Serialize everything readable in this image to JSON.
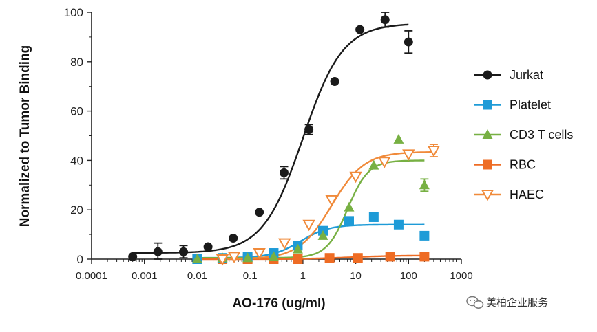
{
  "chart_data": {
    "type": "scatter",
    "title": "",
    "xlabel": "AO-176 (ug/ml)",
    "ylabel": "Normalized to Tumor Binding",
    "x_scale": "log",
    "xlim": [
      0.0001,
      1000
    ],
    "ylim": [
      0,
      100
    ],
    "x_ticks": [
      "0.0001",
      "0.001",
      "0.01",
      "0.1",
      "1",
      "10",
      "100",
      "1000"
    ],
    "y_ticks": [
      "0",
      "20",
      "40",
      "60",
      "80",
      "100"
    ],
    "legend_position": "right",
    "grid": false,
    "series": [
      {
        "name": "Jurkat",
        "color": "#1a1a1a",
        "marker": "circle",
        "x": [
          0.0006,
          0.0018,
          0.0055,
          0.016,
          0.048,
          0.15,
          0.44,
          1.3,
          4.0,
          12,
          36,
          100
        ],
        "y": [
          1,
          3,
          3,
          5,
          8.5,
          19,
          35,
          52.5,
          72,
          93,
          97,
          88
        ],
        "error": [
          0,
          3.5,
          2.5,
          0,
          0,
          0,
          2.5,
          2,
          0,
          0,
          3,
          4.5
        ],
        "fit": {
          "bottom": 2.5,
          "top": 95.5,
          "ec50": 1.0,
          "hill": 1.15,
          "x_range": [
            0.0006,
            100
          ]
        }
      },
      {
        "name": "Platelet",
        "color": "#1e9bd7",
        "marker": "square",
        "x": [
          0.01,
          0.03,
          0.09,
          0.28,
          0.8,
          2.4,
          7.5,
          22,
          65,
          200
        ],
        "y": [
          0,
          0.5,
          1,
          2.5,
          5.5,
          11.5,
          15.5,
          17,
          14,
          9.5
        ],
        "error": [],
        "fit": {
          "bottom": 0.5,
          "top": 14,
          "ec50": 0.9,
          "hill": 1.6,
          "x_range": [
            0.01,
            200
          ]
        }
      },
      {
        "name": "CD3 T cells",
        "color": "#77b043",
        "marker": "triangle-up",
        "x": [
          0.01,
          0.03,
          0.09,
          0.28,
          0.8,
          2.4,
          7.5,
          22,
          65,
          200
        ],
        "y": [
          0,
          0.5,
          0.5,
          1,
          4,
          9.5,
          21,
          38,
          48.5,
          30
        ],
        "error": [
          0,
          0,
          0,
          0,
          0,
          0,
          0,
          0,
          0,
          2.5
        ],
        "fit": {
          "bottom": 0.5,
          "top": 40,
          "ec50": 7.0,
          "hill": 2.2,
          "x_range": [
            0.01,
            200
          ]
        }
      },
      {
        "name": "RBC",
        "color": "#ee6c24",
        "marker": "square",
        "x": [
          0.01,
          0.03,
          0.09,
          0.28,
          0.8,
          3.2,
          11,
          45,
          200
        ],
        "y": [
          0,
          0,
          0,
          0,
          0,
          0.5,
          0.5,
          1,
          1
        ],
        "error": [],
        "fit": {
          "bottom": 0,
          "top": 1.5,
          "ec50": 8,
          "hill": 1,
          "x_range": [
            0.01,
            200
          ]
        }
      },
      {
        "name": "HAEC",
        "color": "#f08a3a",
        "marker": "triangle-down-open",
        "x": [
          0.03,
          0.05,
          0.15,
          0.45,
          1.3,
          3.5,
          10,
          35,
          100,
          300
        ],
        "y": [
          0,
          1,
          2.5,
          6.5,
          14,
          24,
          33.5,
          39.5,
          42.5,
          44
        ],
        "error": [
          0,
          0,
          0,
          0,
          0,
          0,
          0,
          0,
          0,
          2.5
        ],
        "fit": {
          "bottom": 0,
          "top": 43.5,
          "ec50": 3.5,
          "hill": 1.4,
          "x_range": [
            0.03,
            300
          ]
        }
      }
    ]
  },
  "watermark": {
    "text": "美柏企业服务",
    "icon": "wechat-icon",
    "color": "#777777"
  }
}
